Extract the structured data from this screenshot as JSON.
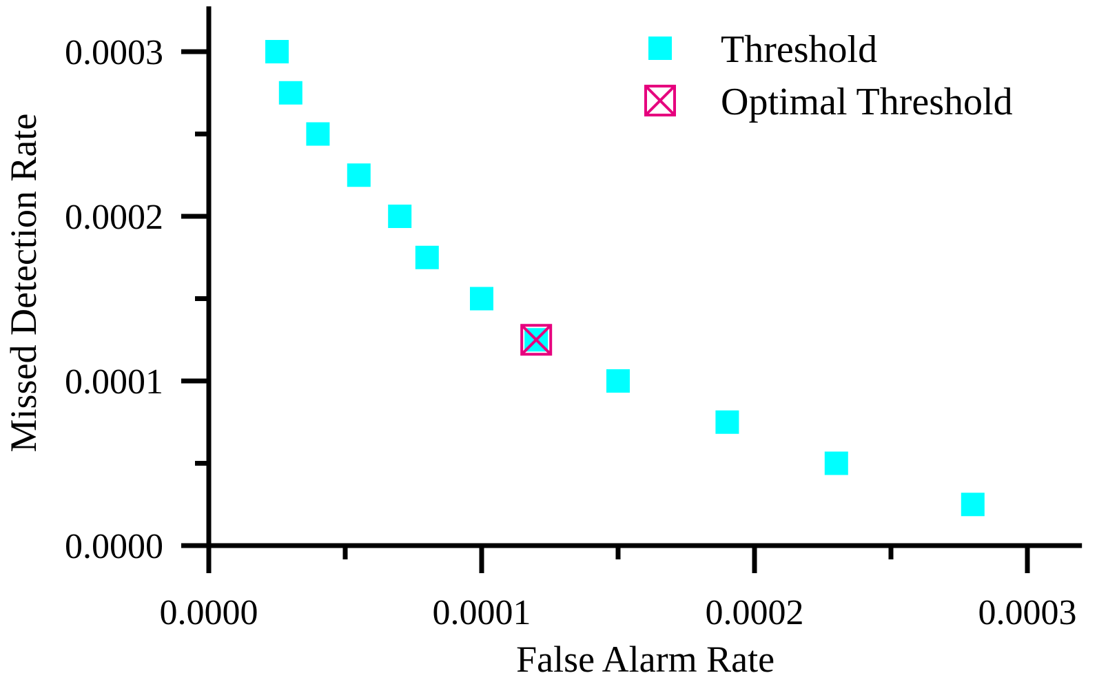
{
  "chart_data": {
    "type": "scatter",
    "xlabel": "False Alarm Rate",
    "ylabel": "Missed Detection Rate",
    "xlim": [
      0,
      0.00032
    ],
    "ylim": [
      0,
      0.00032
    ],
    "x_ticks": [
      {
        "value": 0.0,
        "label": "0.0000"
      },
      {
        "value": 0.0001,
        "label": "0.0001"
      },
      {
        "value": 0.0002,
        "label": "0.0002"
      },
      {
        "value": 0.0003,
        "label": "0.0003"
      }
    ],
    "x_minor_ticks": [
      5e-05,
      0.00015,
      0.00025
    ],
    "y_ticks": [
      {
        "value": 0.0,
        "label": "0.0000"
      },
      {
        "value": 0.0001,
        "label": "0.0001"
      },
      {
        "value": 0.0002,
        "label": "0.0002"
      },
      {
        "value": 0.0003,
        "label": "0.0003"
      }
    ],
    "y_minor_ticks": [
      5e-05,
      0.00015,
      0.00025
    ],
    "grid": false,
    "legend_position": "top-right",
    "series": [
      {
        "name": "Threshold",
        "marker": "filled-square",
        "color": "#00FFFF",
        "points": [
          {
            "x": 2.5e-05,
            "y": 0.0003
          },
          {
            "x": 3e-05,
            "y": 0.000275
          },
          {
            "x": 4e-05,
            "y": 0.00025
          },
          {
            "x": 5.5e-05,
            "y": 0.000225
          },
          {
            "x": 7e-05,
            "y": 0.0002
          },
          {
            "x": 8e-05,
            "y": 0.000175
          },
          {
            "x": 0.0001,
            "y": 0.00015
          },
          {
            "x": 0.00012,
            "y": 0.000125
          },
          {
            "x": 0.00015,
            "y": 0.0001
          },
          {
            "x": 0.00019,
            "y": 7.5e-05
          },
          {
            "x": 0.00023,
            "y": 5e-05
          },
          {
            "x": 0.00028,
            "y": 2.5e-05
          }
        ]
      },
      {
        "name": "Optimal Threshold",
        "marker": "crossed-square",
        "color": "#E6007E",
        "points": [
          {
            "x": 0.00012,
            "y": 0.000125
          }
        ]
      }
    ]
  }
}
